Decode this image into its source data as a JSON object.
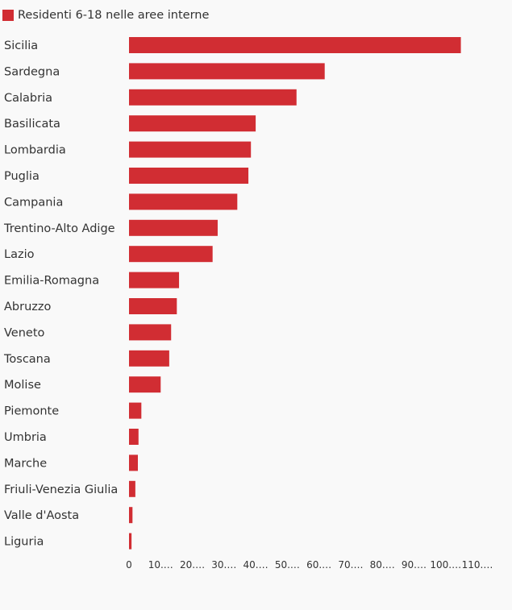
{
  "chart_data": {
    "type": "bar",
    "orientation": "horizontal",
    "series": [
      {
        "name": "Residenti 6-18 nelle aree interne",
        "color": "#d12d33"
      }
    ],
    "categories": [
      "Sicilia",
      "Sardegna",
      "Calabria",
      "Basilicata",
      "Lombardia",
      "Puglia",
      "Campania",
      "Trentino-Alto Adige",
      "Lazio",
      "Emilia-Romagna",
      "Abruzzo",
      "Veneto",
      "Toscana",
      "Molise",
      "Piemonte",
      "Umbria",
      "Marche",
      "Friuli-Venezia Giulia",
      "Valle d'Aosta",
      "Liguria"
    ],
    "values": [
      104800,
      61800,
      52900,
      40000,
      38500,
      37700,
      34200,
      28000,
      26400,
      15800,
      15100,
      13300,
      12700,
      10000,
      3900,
      3000,
      2800,
      2000,
      1100,
      800
    ],
    "xlim": [
      0,
      110000
    ],
    "x_ticks": [
      0,
      10000,
      20000,
      30000,
      40000,
      50000,
      60000,
      70000,
      80000,
      90000,
      100000,
      110000
    ],
    "x_tick_labels": [
      "0",
      "10.…",
      "20.…",
      "30.…",
      "40.…",
      "50.…",
      "60.…",
      "70.…",
      "80.…",
      "90.…",
      "100.…",
      "110.…"
    ],
    "legend_position": "top-left",
    "grid": false
  }
}
